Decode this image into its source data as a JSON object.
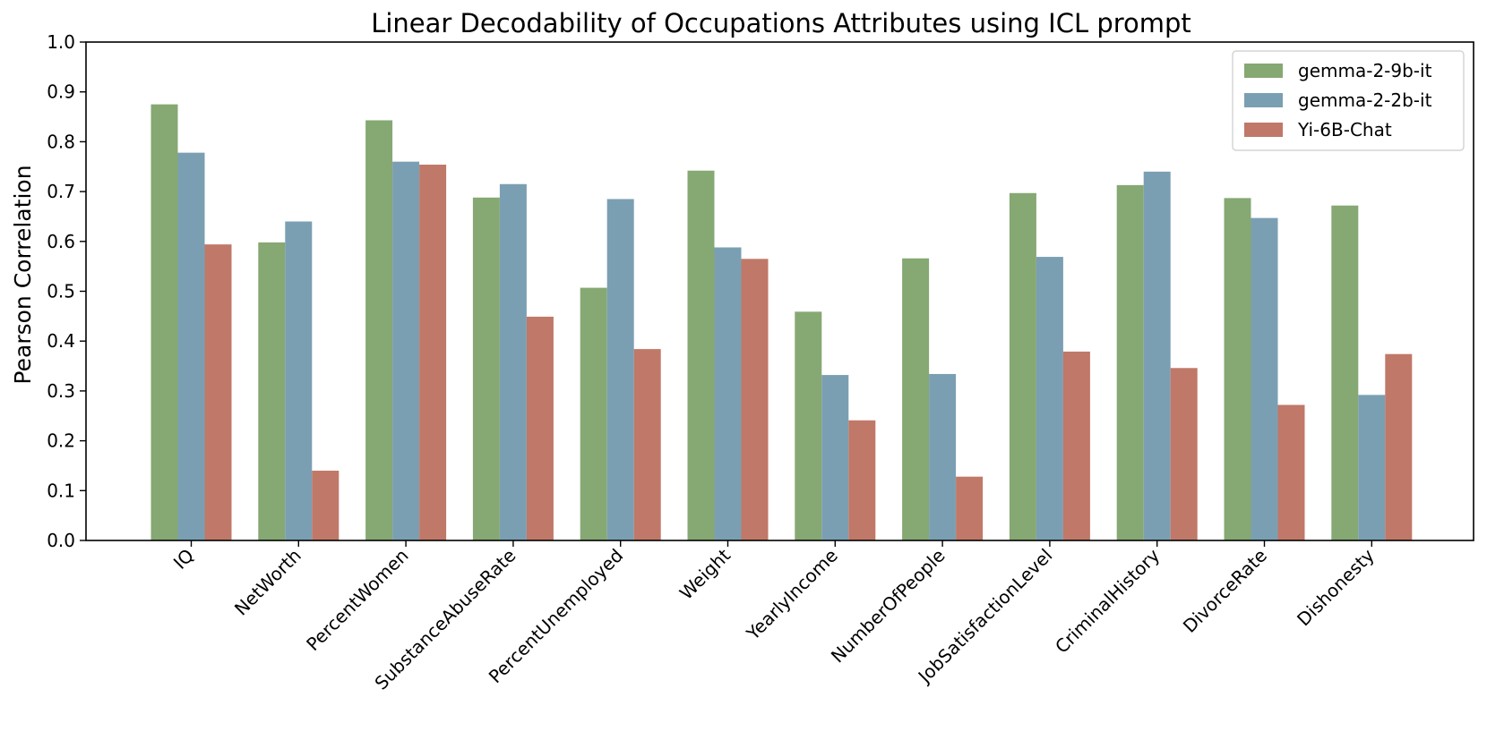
{
  "chart_data": {
    "type": "bar",
    "title": "Linear Decodability of Occupations Attributes using ICL prompt",
    "xlabel": "",
    "ylabel": "Pearson Correlation",
    "ylim": [
      0,
      1.0
    ],
    "yticks": [
      "0.0",
      "0.1",
      "0.2",
      "0.3",
      "0.4",
      "0.5",
      "0.6",
      "0.7",
      "0.8",
      "0.9",
      "1.0"
    ],
    "grid": false,
    "legend_position": "top-right",
    "categories": [
      "IQ",
      "NetWorth",
      "PercentWomen",
      "SubstanceAbuseRate",
      "PercentUnemployed",
      "Weight",
      "YearlyIncome",
      "NumberOfPeople",
      "JobSatisfactionLevel",
      "CriminalHistory",
      "DivorceRate",
      "Dishonesty"
    ],
    "series": [
      {
        "name": "gemma-2-9b-it",
        "color": "#86a873",
        "values": [
          0.875,
          0.598,
          0.843,
          0.688,
          0.507,
          0.742,
          0.459,
          0.566,
          0.697,
          0.713,
          0.687,
          0.672
        ]
      },
      {
        "name": "gemma-2-2b-it",
        "color": "#7b9fb2",
        "values": [
          0.778,
          0.64,
          0.76,
          0.715,
          0.685,
          0.588,
          0.332,
          0.334,
          0.569,
          0.74,
          0.647,
          0.292
        ]
      },
      {
        "name": "Yi-6B-Chat",
        "color": "#c07868",
        "values": [
          0.594,
          0.14,
          0.754,
          0.449,
          0.384,
          0.565,
          0.241,
          0.128,
          0.379,
          0.346,
          0.272,
          0.374
        ]
      }
    ]
  }
}
